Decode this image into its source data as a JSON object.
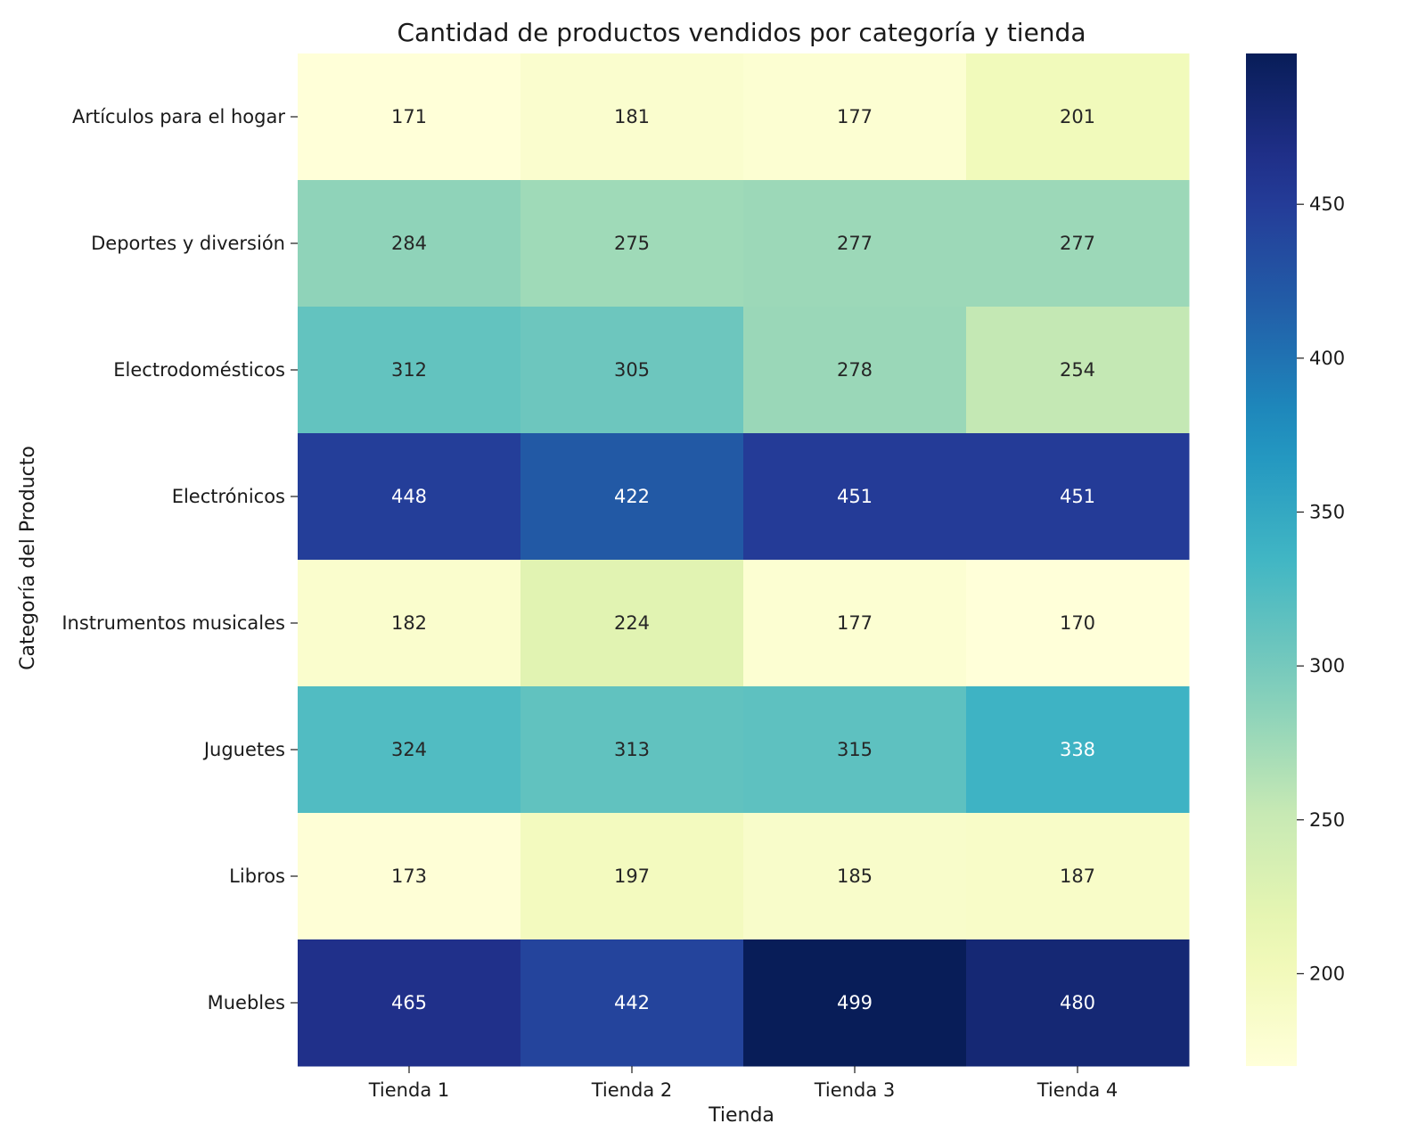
{
  "chart_data": {
    "type": "heatmap",
    "title": "Cantidad de productos vendidos por categoría y tienda",
    "xlabel": "Tienda",
    "ylabel": "Categoría del Producto",
    "x_categories": [
      "Tienda 1",
      "Tienda 2",
      "Tienda 3",
      "Tienda 4"
    ],
    "y_categories": [
      "Artículos para el hogar",
      "Deportes y diversión",
      "Electrodomésticos",
      "Electrónicos",
      "Instrumentos musicales",
      "Juguetes",
      "Libros",
      "Muebles"
    ],
    "values": [
      [
        171,
        181,
        177,
        201
      ],
      [
        284,
        275,
        277,
        277
      ],
      [
        312,
        305,
        278,
        254
      ],
      [
        448,
        422,
        451,
        451
      ],
      [
        182,
        224,
        177,
        170
      ],
      [
        324,
        313,
        315,
        338
      ],
      [
        173,
        197,
        185,
        187
      ],
      [
        465,
        442,
        499,
        480
      ]
    ],
    "colormap": "YlGnBu",
    "color_range": [
      170,
      499
    ],
    "colorbar_ticks": [
      200,
      250,
      300,
      350,
      400,
      450
    ],
    "annotations": true
  }
}
